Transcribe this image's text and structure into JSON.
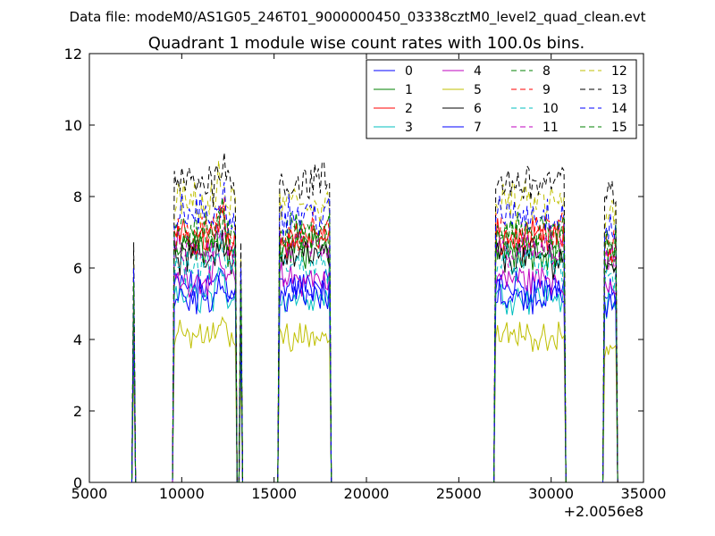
{
  "chart_data": {
    "type": "line",
    "suptitle": "Data file: modeM0/AS1G05_246T01_9000000450_03338cztM0_level2_quad_clean.evt",
    "title": "Quadrant 1 module wise count rates with 100.0s bins.",
    "xlabel": "",
    "ylabel": "",
    "x_offset_label": "+2.0056e8",
    "xlim": [
      5000,
      35000
    ],
    "ylim": [
      0,
      12
    ],
    "x_ticks": [
      "5000",
      "10000",
      "15000",
      "20000",
      "25000",
      "30000",
      "35000"
    ],
    "y_ticks": [
      "0",
      "2",
      "4",
      "6",
      "8",
      "10",
      "12"
    ],
    "grid": false,
    "legend_position": "top-right",
    "bin_seconds": 100,
    "segments": [
      {
        "start": 7400,
        "end": 7400
      },
      {
        "start": 9600,
        "end": 12900
      },
      {
        "start": 13200,
        "end": 13200
      },
      {
        "start": 15300,
        "end": 18000
      },
      {
        "start": 27000,
        "end": 30700
      },
      {
        "start": 32900,
        "end": 33500
      }
    ],
    "series": [
      {
        "name": "0",
        "color": "#0000ff",
        "dash": "solid",
        "level": 5.5
      },
      {
        "name": "1",
        "color": "#008000",
        "dash": "solid",
        "level": 6.5
      },
      {
        "name": "2",
        "color": "#ff0000",
        "dash": "solid",
        "level": 6.8
      },
      {
        "name": "3",
        "color": "#00bfbf",
        "dash": "solid",
        "level": 5.2
      },
      {
        "name": "4",
        "color": "#bf00bf",
        "dash": "solid",
        "level": 5.7
      },
      {
        "name": "5",
        "color": "#bfbf00",
        "dash": "solid",
        "level": 4.1
      },
      {
        "name": "6",
        "color": "#000000",
        "dash": "solid",
        "level": 6.3
      },
      {
        "name": "7",
        "color": "#0000ff",
        "dash": "solid",
        "level": 5.2
      },
      {
        "name": "8",
        "color": "#008000",
        "dash": "dashed",
        "level": 6.8
      },
      {
        "name": "9",
        "color": "#ff0000",
        "dash": "dashed",
        "level": 7.0
      },
      {
        "name": "10",
        "color": "#00bfbf",
        "dash": "dashed",
        "level": 6.1
      },
      {
        "name": "11",
        "color": "#bf00bf",
        "dash": "dashed",
        "level": 6.5
      },
      {
        "name": "12",
        "color": "#bfbf00",
        "dash": "dashed",
        "level": 7.8
      },
      {
        "name": "13",
        "color": "#000000",
        "dash": "dashed",
        "level": 8.4
      },
      {
        "name": "14",
        "color": "#0000ff",
        "dash": "dashed",
        "level": 7.5
      },
      {
        "name": "15",
        "color": "#008000",
        "dash": "dashed",
        "level": 7.0
      }
    ]
  }
}
